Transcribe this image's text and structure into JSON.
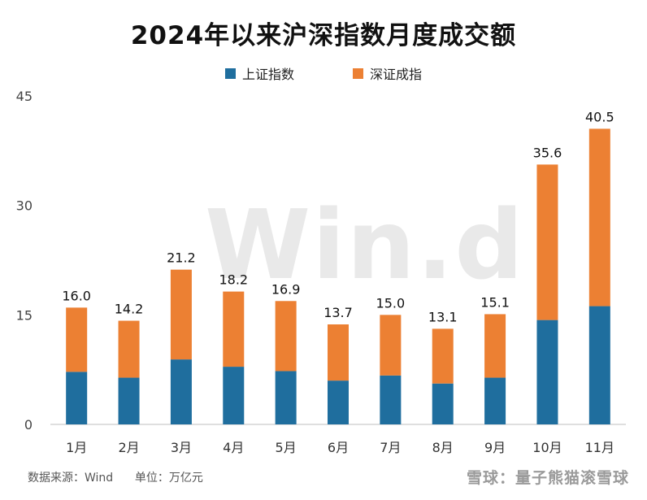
{
  "title": "2024年以来沪深指数月度成交额",
  "source_text": "数据来源：Wind",
  "unit_text": "单位：万亿元",
  "watermark_text": "雪球：量子熊猫滚雪球",
  "background_mark": "Win.d",
  "colors": {
    "shanghai": "#1f6e9e",
    "shenzhen": "#ec8033"
  },
  "chart_data": {
    "type": "bar",
    "stacked": true,
    "title": "2024年以来沪深指数月度成交额",
    "categories": [
      "1月",
      "2月",
      "3月",
      "4月",
      "5月",
      "6月",
      "7月",
      "8月",
      "9月",
      "10月",
      "11月"
    ],
    "series": [
      {
        "name": "上证指数",
        "values": [
          7.2,
          6.4,
          8.9,
          7.9,
          7.3,
          6.0,
          6.7,
          5.6,
          6.4,
          14.3,
          16.2
        ]
      },
      {
        "name": "深证成指",
        "values": [
          8.8,
          7.8,
          12.3,
          10.3,
          9.6,
          7.7,
          8.3,
          7.5,
          8.7,
          21.3,
          24.3
        ]
      }
    ],
    "totals": [
      "16.0",
      "14.2",
      "21.2",
      "18.2",
      "16.9",
      "13.7",
      "15.0",
      "13.1",
      "15.1",
      "35.6",
      "40.5"
    ],
    "yticks": [
      0,
      15,
      30,
      45
    ],
    "ylim": [
      0,
      45
    ],
    "legend_position": "top-center",
    "grid": false
  }
}
